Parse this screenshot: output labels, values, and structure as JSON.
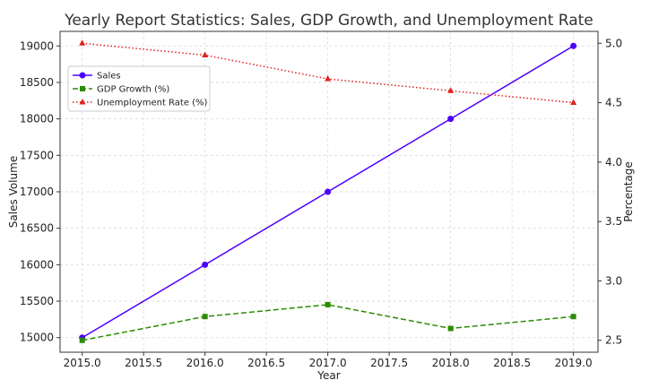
{
  "chart_data": {
    "type": "line",
    "title": "Yearly Report Statistics: Sales, GDP Growth, and Unemployment Rate",
    "xlabel": "Year",
    "ylabel_left": "Sales Volume",
    "ylabel_right": "Percentage",
    "x": [
      2015,
      2016,
      2017,
      2018,
      2019
    ],
    "xlim": [
      2014.82,
      2019.2
    ],
    "ylim_left": [
      14800,
      19200
    ],
    "ylim_right": [
      2.4,
      5.1
    ],
    "x_ticks": [
      "2015.0",
      "2015.5",
      "2016.0",
      "2016.5",
      "2017.0",
      "2017.5",
      "2018.0",
      "2018.5",
      "2019.0"
    ],
    "y_left_ticks": [
      "15000",
      "15500",
      "16000",
      "16500",
      "17000",
      "17500",
      "18000",
      "18500",
      "19000"
    ],
    "y_right_ticks": [
      "2.5",
      "3.0",
      "3.5",
      "4.0",
      "4.5",
      "5.0"
    ],
    "grid": true,
    "legend_position": "upper-left",
    "series": [
      {
        "name": "Sales",
        "axis": "left",
        "values": [
          15000,
          16000,
          17000,
          18000,
          19000
        ],
        "color": "#4b00ff",
        "style": "solid",
        "marker": "circle"
      },
      {
        "name": "GDP Growth (%)",
        "axis": "right",
        "values": [
          2.5,
          2.7,
          2.8,
          2.6,
          2.7
        ],
        "color": "#2a8c00",
        "style": "dashed",
        "marker": "square"
      },
      {
        "name": "Unemployment Rate (%)",
        "axis": "right",
        "values": [
          5.0,
          4.9,
          4.7,
          4.6,
          4.5
        ],
        "color": "#e0201c",
        "style": "dotted",
        "marker": "triangle"
      }
    ],
    "colors": {
      "left_axis": "#4b00ff",
      "grid": "#d9d9d9",
      "axis": "#333333"
    }
  }
}
